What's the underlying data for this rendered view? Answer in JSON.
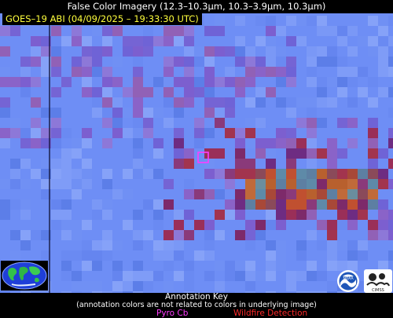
{
  "title": "False Color Imagery (12.3–10.3µm, 10.3–3.9µm, 10.3µm)",
  "satellite_label": "GOES–19 ABI (04/09/2025 – 19:33:30 UTC)",
  "annotation_key": {
    "title": "Annotation Key",
    "note": "(annotation colors are not related to colors in underlying image)",
    "pyro_cb": "Pyro Cb",
    "wildfire": "Wildfire Detection"
  },
  "logos": {
    "globe_icon": "earth-globe-icon",
    "noaa_icon": "noaa-logo-icon",
    "cimss_icon": "cimss-logo-icon",
    "noaa_text": "NOAA",
    "cimss_text": "CIMSS"
  },
  "colors": {
    "sat_label": "#ffff3c",
    "pyro_cb": "#ff3cff",
    "wildfire": "#ff2a2a",
    "background_blue": "#6e8ef5"
  }
}
